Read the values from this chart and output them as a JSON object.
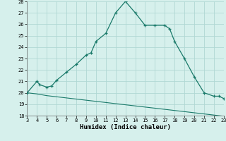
{
  "xlabel": "Humidex (Indice chaleur)",
  "xlim": [
    3,
    23
  ],
  "ylim": [
    18,
    28
  ],
  "xticks": [
    3,
    4,
    5,
    6,
    7,
    8,
    9,
    10,
    11,
    12,
    13,
    14,
    15,
    16,
    17,
    18,
    19,
    20,
    21,
    22,
    23
  ],
  "yticks": [
    18,
    19,
    20,
    21,
    22,
    23,
    24,
    25,
    26,
    27,
    28
  ],
  "bg_color": "#d6f0ec",
  "grid_color": "#b0d8d4",
  "line_color": "#1a7a6a",
  "upper_x": [
    3,
    4,
    4.3,
    5,
    5.5,
    6,
    7,
    8,
    9,
    9.5,
    10,
    11,
    12,
    13,
    14,
    15,
    16,
    17,
    17.5,
    18,
    19,
    20,
    21,
    22,
    22.5,
    23
  ],
  "upper_y": [
    20,
    21,
    20.7,
    20.5,
    20.6,
    21.1,
    21.8,
    22.5,
    23.3,
    23.5,
    24.5,
    25.2,
    27.0,
    28.0,
    27.0,
    25.9,
    25.9,
    25.9,
    25.6,
    24.5,
    23.0,
    21.4,
    20.0,
    19.7,
    19.7,
    19.5
  ],
  "lower_x": [
    3,
    4,
    5,
    6,
    7,
    8,
    9,
    10,
    11,
    12,
    13,
    14,
    15,
    16,
    17,
    18,
    19,
    20,
    21,
    22,
    23
  ],
  "lower_y": [
    20.0,
    19.9,
    19.75,
    19.65,
    19.55,
    19.45,
    19.35,
    19.25,
    19.15,
    19.05,
    18.95,
    18.85,
    18.75,
    18.65,
    18.55,
    18.45,
    18.35,
    18.25,
    18.15,
    18.05,
    17.95
  ]
}
